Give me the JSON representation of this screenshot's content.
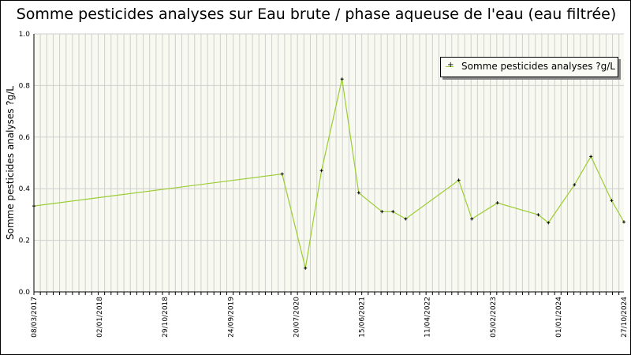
{
  "chart_data": {
    "type": "line",
    "title": "Somme pesticides analyses sur Eau brute / phase aqueuse de l'eau (eau filtrée)",
    "ylabel": "Somme pesticides analyses ?g/L",
    "xlabel": "",
    "ylim": [
      0,
      1.0
    ],
    "xlim": [
      "2017-03-08",
      "2024-10-27"
    ],
    "y_ticks": [
      "0.0",
      "0.2",
      "0.4",
      "0.6",
      "0.8",
      "1.0"
    ],
    "x_ticks": [
      "08/03/2017",
      "02/01/2018",
      "29/10/2018",
      "24/09/2019",
      "20/07/2020",
      "15/06/2021",
      "11/04/2022",
      "05/02/2023",
      "01/01/2024",
      "27/10/2024"
    ],
    "grid": true,
    "legend": "top-right",
    "line_color": "#9acd32",
    "series": [
      {
        "name": "Somme pesticides analyses ?g/L",
        "x": [
          "2017-03-08",
          "2020-05-25",
          "2020-09-12",
          "2020-11-27",
          "2021-03-04",
          "2021-05-22",
          "2021-09-09",
          "2021-10-31",
          "2021-12-30",
          "2022-09-07",
          "2022-11-08",
          "2023-03-09",
          "2023-09-18",
          "2023-11-05",
          "2024-03-07",
          "2024-05-24",
          "2024-08-30",
          "2024-10-27"
        ],
        "y": [
          0.333,
          0.457,
          0.092,
          0.47,
          0.825,
          0.384,
          0.311,
          0.311,
          0.283,
          0.433,
          0.283,
          0.345,
          0.299,
          0.268,
          0.415,
          0.525,
          0.354,
          0.271
        ]
      }
    ]
  }
}
